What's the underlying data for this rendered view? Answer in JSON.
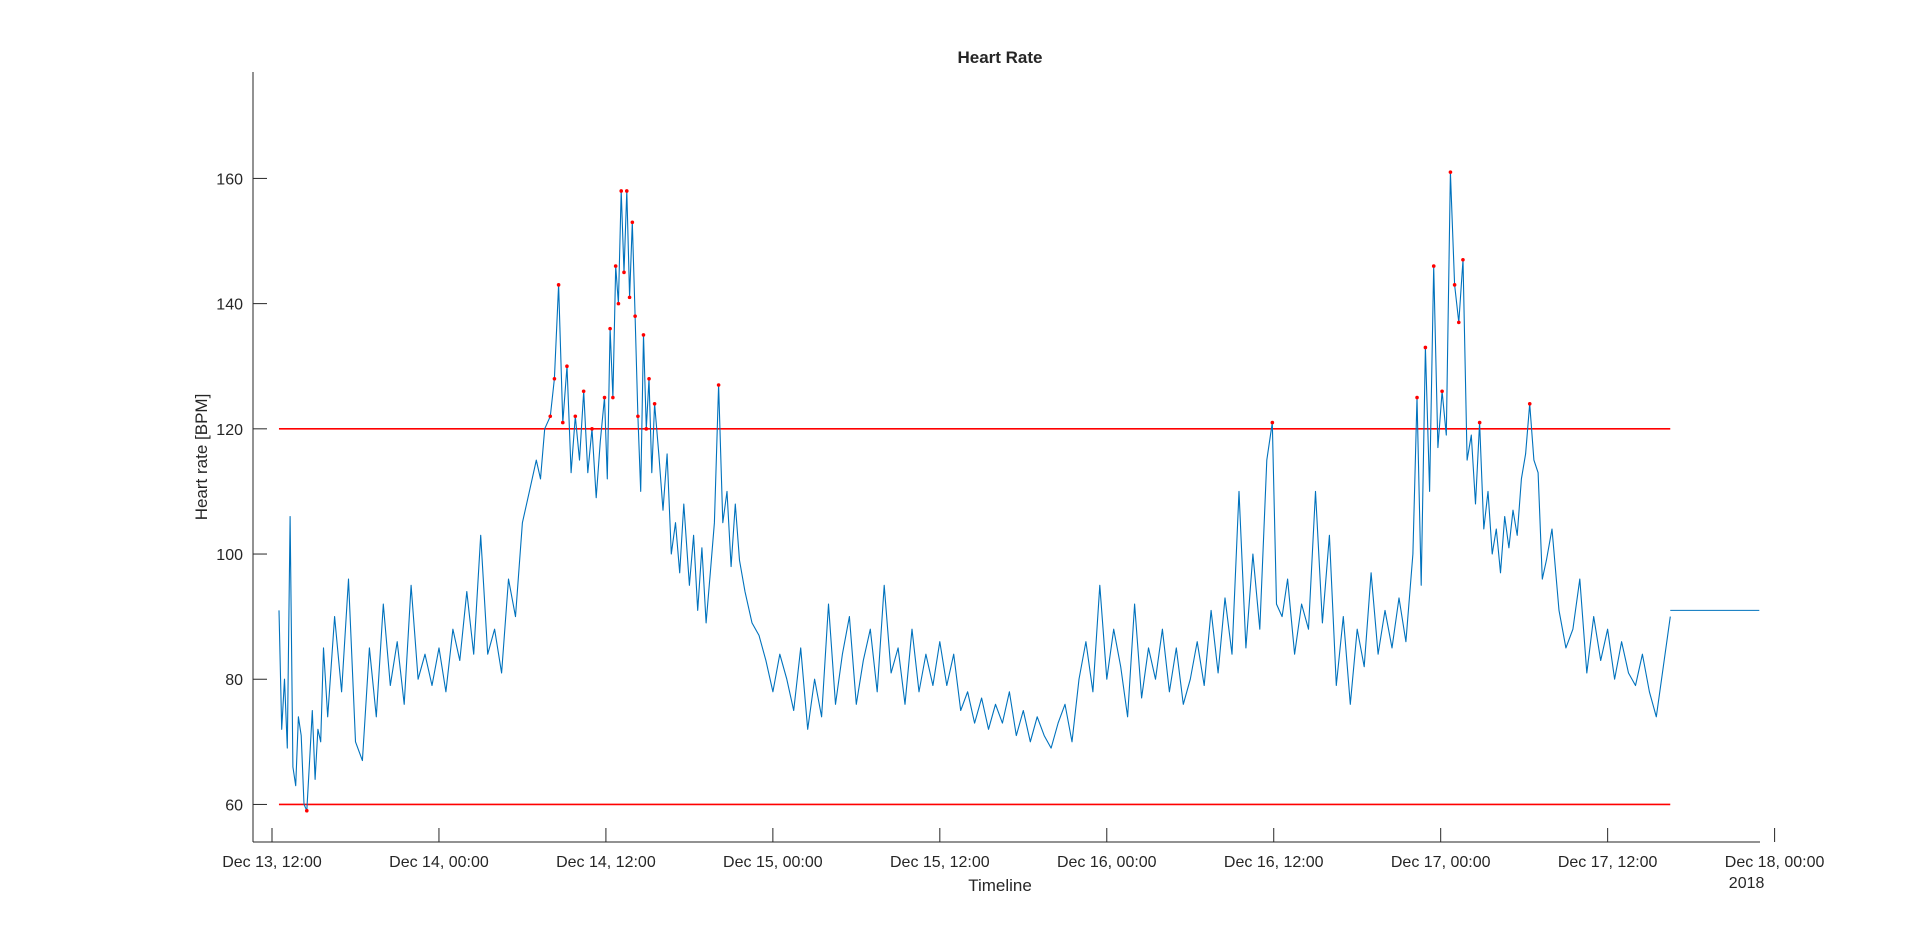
{
  "chart_data": {
    "type": "line",
    "title": "Heart Rate",
    "xlabel": "Timeline",
    "ylabel": "Heart rate [BPM]",
    "x_tick_labels": [
      "Dec 13, 12:00",
      "Dec 14, 00:00",
      "Dec 14, 12:00",
      "Dec 15, 00:00",
      "Dec 15, 12:00",
      "Dec 16, 00:00",
      "Dec 16, 12:00",
      "Dec 17, 00:00",
      "Dec 17, 12:00",
      "Dec 18, 00:00"
    ],
    "x_secondary_label": "2018",
    "y_ticks": [
      60,
      80,
      100,
      120,
      140,
      160
    ],
    "ylim": [
      54,
      177
    ],
    "xlim_hours_from_first_tick": [
      0,
      120
    ],
    "grid": false,
    "colors": {
      "series": "#0072BD",
      "threshold": "#FF0000",
      "markers": "#FF0000",
      "axis": "#262626"
    },
    "thresholds": [
      {
        "value": 120,
        "from_h": 0.5,
        "to_h": 100.5
      },
      {
        "value": 60,
        "from_h": 0.5,
        "to_h": 100.5
      }
    ],
    "series": [
      {
        "points": [
          [
            0.5,
            91
          ],
          [
            0.7,
            72
          ],
          [
            0.9,
            80
          ],
          [
            1.1,
            69
          ],
          [
            1.3,
            106
          ],
          [
            1.5,
            66
          ],
          [
            1.7,
            63
          ],
          [
            1.9,
            74
          ],
          [
            2.1,
            71
          ],
          [
            2.3,
            60
          ],
          [
            2.5,
            59
          ],
          [
            2.7,
            67
          ],
          [
            2.9,
            75
          ],
          [
            3.1,
            64
          ],
          [
            3.3,
            72
          ],
          [
            3.5,
            70
          ],
          [
            3.7,
            85
          ],
          [
            4.0,
            74
          ],
          [
            4.5,
            90
          ],
          [
            5.0,
            78
          ],
          [
            5.5,
            96
          ],
          [
            6.0,
            70
          ],
          [
            6.5,
            67
          ],
          [
            7.0,
            85
          ],
          [
            7.5,
            74
          ],
          [
            8.0,
            92
          ],
          [
            8.5,
            79
          ],
          [
            9.0,
            86
          ],
          [
            9.5,
            76
          ],
          [
            10.0,
            95
          ],
          [
            10.5,
            80
          ],
          [
            11.0,
            84
          ],
          [
            11.5,
            79
          ],
          [
            12.0,
            85
          ],
          [
            12.5,
            78
          ],
          [
            13.0,
            88
          ],
          [
            13.5,
            83
          ],
          [
            14.0,
            94
          ],
          [
            14.5,
            84
          ],
          [
            15.0,
            103
          ],
          [
            15.5,
            84
          ],
          [
            16.0,
            88
          ],
          [
            16.5,
            81
          ],
          [
            17.0,
            96
          ],
          [
            17.5,
            90
          ],
          [
            18.0,
            105
          ],
          [
            18.5,
            110
          ],
          [
            19.0,
            115
          ],
          [
            19.3,
            112
          ],
          [
            19.6,
            120
          ],
          [
            20.0,
            122
          ],
          [
            20.3,
            128
          ],
          [
            20.6,
            143
          ],
          [
            20.9,
            121
          ],
          [
            21.2,
            130
          ],
          [
            21.5,
            113
          ],
          [
            21.8,
            122
          ],
          [
            22.1,
            115
          ],
          [
            22.4,
            126
          ],
          [
            22.7,
            113
          ],
          [
            23.0,
            120
          ],
          [
            23.3,
            109
          ],
          [
            23.6,
            118
          ],
          [
            23.9,
            125
          ],
          [
            24.1,
            112
          ],
          [
            24.3,
            136
          ],
          [
            24.5,
            125
          ],
          [
            24.7,
            146
          ],
          [
            24.9,
            140
          ],
          [
            25.1,
            158
          ],
          [
            25.3,
            145
          ],
          [
            25.5,
            158
          ],
          [
            25.7,
            141
          ],
          [
            25.9,
            153
          ],
          [
            26.1,
            138
          ],
          [
            26.3,
            122
          ],
          [
            26.5,
            110
          ],
          [
            26.7,
            135
          ],
          [
            26.9,
            120
          ],
          [
            27.1,
            128
          ],
          [
            27.3,
            113
          ],
          [
            27.5,
            124
          ],
          [
            27.8,
            116
          ],
          [
            28.1,
            107
          ],
          [
            28.4,
            116
          ],
          [
            28.7,
            100
          ],
          [
            29.0,
            105
          ],
          [
            29.3,
            97
          ],
          [
            29.6,
            108
          ],
          [
            30.0,
            95
          ],
          [
            30.3,
            103
          ],
          [
            30.6,
            91
          ],
          [
            30.9,
            101
          ],
          [
            31.2,
            89
          ],
          [
            31.5,
            97
          ],
          [
            31.8,
            105
          ],
          [
            32.1,
            127
          ],
          [
            32.4,
            105
          ],
          [
            32.7,
            110
          ],
          [
            33.0,
            98
          ],
          [
            33.3,
            108
          ],
          [
            33.6,
            99
          ],
          [
            34.0,
            94
          ],
          [
            34.5,
            89
          ],
          [
            35.0,
            87
          ],
          [
            35.5,
            83
          ],
          [
            36.0,
            78
          ],
          [
            36.5,
            84
          ],
          [
            37.0,
            80
          ],
          [
            37.5,
            75
          ],
          [
            38.0,
            85
          ],
          [
            38.5,
            72
          ],
          [
            39.0,
            80
          ],
          [
            39.5,
            74
          ],
          [
            40.0,
            92
          ],
          [
            40.5,
            76
          ],
          [
            41.0,
            84
          ],
          [
            41.5,
            90
          ],
          [
            42.0,
            76
          ],
          [
            42.5,
            83
          ],
          [
            43.0,
            88
          ],
          [
            43.5,
            78
          ],
          [
            44.0,
            95
          ],
          [
            44.5,
            81
          ],
          [
            45.0,
            85
          ],
          [
            45.5,
            76
          ],
          [
            46.0,
            88
          ],
          [
            46.5,
            78
          ],
          [
            47.0,
            84
          ],
          [
            47.5,
            79
          ],
          [
            48.0,
            86
          ],
          [
            48.5,
            79
          ],
          [
            49.0,
            84
          ],
          [
            49.5,
            75
          ],
          [
            50.0,
            78
          ],
          [
            50.5,
            73
          ],
          [
            51.0,
            77
          ],
          [
            51.5,
            72
          ],
          [
            52.0,
            76
          ],
          [
            52.5,
            73
          ],
          [
            53.0,
            78
          ],
          [
            53.5,
            71
          ],
          [
            54.0,
            75
          ],
          [
            54.5,
            70
          ],
          [
            55.0,
            74
          ],
          [
            55.5,
            71
          ],
          [
            56.0,
            69
          ],
          [
            56.5,
            73
          ],
          [
            57.0,
            76
          ],
          [
            57.5,
            70
          ],
          [
            58.0,
            80
          ],
          [
            58.5,
            86
          ],
          [
            59.0,
            78
          ],
          [
            59.5,
            95
          ],
          [
            60.0,
            80
          ],
          [
            60.5,
            88
          ],
          [
            61.0,
            82
          ],
          [
            61.5,
            74
          ],
          [
            62.0,
            92
          ],
          [
            62.5,
            77
          ],
          [
            63.0,
            85
          ],
          [
            63.5,
            80
          ],
          [
            64.0,
            88
          ],
          [
            64.5,
            78
          ],
          [
            65.0,
            85
          ],
          [
            65.5,
            76
          ],
          [
            66.0,
            80
          ],
          [
            66.5,
            86
          ],
          [
            67.0,
            79
          ],
          [
            67.5,
            91
          ],
          [
            68.0,
            81
          ],
          [
            68.5,
            93
          ],
          [
            69.0,
            84
          ],
          [
            69.5,
            110
          ],
          [
            70.0,
            85
          ],
          [
            70.5,
            100
          ],
          [
            71.0,
            88
          ],
          [
            71.5,
            115
          ],
          [
            71.9,
            121
          ],
          [
            72.2,
            92
          ],
          [
            72.6,
            90
          ],
          [
            73.0,
            96
          ],
          [
            73.5,
            84
          ],
          [
            74.0,
            92
          ],
          [
            74.5,
            88
          ],
          [
            75.0,
            110
          ],
          [
            75.5,
            89
          ],
          [
            76.0,
            103
          ],
          [
            76.5,
            79
          ],
          [
            77.0,
            90
          ],
          [
            77.5,
            76
          ],
          [
            78.0,
            88
          ],
          [
            78.5,
            82
          ],
          [
            79.0,
            97
          ],
          [
            79.5,
            84
          ],
          [
            80.0,
            91
          ],
          [
            80.5,
            85
          ],
          [
            81.0,
            93
          ],
          [
            81.5,
            86
          ],
          [
            82.0,
            100
          ],
          [
            82.3,
            125
          ],
          [
            82.6,
            95
          ],
          [
            82.9,
            133
          ],
          [
            83.2,
            110
          ],
          [
            83.5,
            146
          ],
          [
            83.8,
            117
          ],
          [
            84.1,
            126
          ],
          [
            84.4,
            119
          ],
          [
            84.7,
            161
          ],
          [
            85.0,
            143
          ],
          [
            85.3,
            137
          ],
          [
            85.6,
            147
          ],
          [
            85.9,
            115
          ],
          [
            86.2,
            119
          ],
          [
            86.5,
            108
          ],
          [
            86.8,
            121
          ],
          [
            87.1,
            104
          ],
          [
            87.4,
            110
          ],
          [
            87.7,
            100
          ],
          [
            88.0,
            104
          ],
          [
            88.3,
            97
          ],
          [
            88.6,
            106
          ],
          [
            88.9,
            101
          ],
          [
            89.2,
            107
          ],
          [
            89.5,
            103
          ],
          [
            89.8,
            112
          ],
          [
            90.1,
            116
          ],
          [
            90.4,
            124
          ],
          [
            90.7,
            115
          ],
          [
            91.0,
            113
          ],
          [
            91.3,
            96
          ],
          [
            91.6,
            99
          ],
          [
            92.0,
            104
          ],
          [
            92.5,
            91
          ],
          [
            93.0,
            85
          ],
          [
            93.5,
            88
          ],
          [
            94.0,
            96
          ],
          [
            94.5,
            81
          ],
          [
            95.0,
            90
          ],
          [
            95.5,
            83
          ],
          [
            96.0,
            88
          ],
          [
            96.5,
            80
          ],
          [
            97.0,
            86
          ],
          [
            97.5,
            81
          ],
          [
            98.0,
            79
          ],
          [
            98.5,
            84
          ],
          [
            99.0,
            78
          ],
          [
            99.5,
            74
          ],
          [
            100.0,
            82
          ],
          [
            100.5,
            90
          ]
        ]
      }
    ],
    "flat_segment": {
      "value": 91,
      "from_h": 100.5,
      "to_h": 106.9
    },
    "exceed_markers": [
      [
        2.5,
        59
      ],
      [
        20.0,
        122
      ],
      [
        20.3,
        128
      ],
      [
        20.6,
        143
      ],
      [
        20.9,
        121
      ],
      [
        21.2,
        130
      ],
      [
        21.8,
        122
      ],
      [
        22.4,
        126
      ],
      [
        23.0,
        120
      ],
      [
        23.9,
        125
      ],
      [
        24.3,
        136
      ],
      [
        24.5,
        125
      ],
      [
        24.7,
        146
      ],
      [
        24.9,
        140
      ],
      [
        25.1,
        158
      ],
      [
        25.3,
        145
      ],
      [
        25.5,
        158
      ],
      [
        25.7,
        141
      ],
      [
        25.9,
        153
      ],
      [
        26.1,
        138
      ],
      [
        26.3,
        122
      ],
      [
        26.7,
        135
      ],
      [
        26.9,
        120
      ],
      [
        27.1,
        128
      ],
      [
        27.5,
        124
      ],
      [
        32.1,
        127
      ],
      [
        71.9,
        121
      ],
      [
        82.3,
        125
      ],
      [
        82.9,
        133
      ],
      [
        83.5,
        146
      ],
      [
        84.1,
        126
      ],
      [
        84.7,
        161
      ],
      [
        85.0,
        143
      ],
      [
        85.3,
        137
      ],
      [
        85.6,
        147
      ],
      [
        86.8,
        121
      ],
      [
        90.4,
        124
      ]
    ]
  }
}
